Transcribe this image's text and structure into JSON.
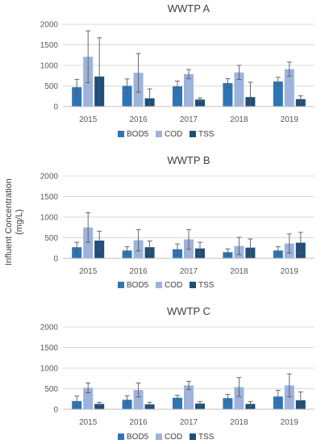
{
  "ylabel": "Influent Concentration (mg/L)",
  "ylabel_lines": [
    "Influent Concentration",
    "(mg/L)"
  ],
  "chart_data": [
    {
      "type": "bar",
      "title": "WWTP A",
      "categories": [
        "2015",
        "2016",
        "2017",
        "2018",
        "2019"
      ],
      "ylim": [
        0,
        2000
      ],
      "yticks": [
        0,
        500,
        1000,
        1500,
        2000
      ],
      "series": [
        {
          "name": "BOD5",
          "color": "#2e75b6",
          "values": [
            470,
            500,
            490,
            570,
            610
          ],
          "err": [
            190,
            170,
            130,
            110,
            100
          ]
        },
        {
          "name": "COD",
          "color": "#9db3dc",
          "values": [
            1210,
            820,
            790,
            830,
            910
          ],
          "err": [
            630,
            470,
            110,
            170,
            170
          ]
        },
        {
          "name": "TSS",
          "color": "#1f4e79",
          "values": [
            730,
            200,
            170,
            230,
            180
          ],
          "err": [
            940,
            230,
            40,
            360,
            80
          ]
        }
      ],
      "legend": "bottom"
    },
    {
      "type": "bar",
      "title": "WWTP B",
      "categories": [
        "2015",
        "2016",
        "2017",
        "2018",
        "2019"
      ],
      "ylim": [
        0,
        2000
      ],
      "yticks": [
        0,
        500,
        1000,
        1500,
        2000
      ],
      "series": [
        {
          "name": "BOD5",
          "color": "#2e75b6",
          "values": [
            270,
            190,
            220,
            150,
            190
          ],
          "err": [
            120,
            90,
            130,
            80,
            90
          ]
        },
        {
          "name": "COD",
          "color": "#9db3dc",
          "values": [
            750,
            440,
            460,
            300,
            360
          ],
          "err": [
            360,
            260,
            240,
            210,
            230
          ]
        },
        {
          "name": "TSS",
          "color": "#1f4e79",
          "values": [
            430,
            270,
            240,
            260,
            380
          ],
          "err": [
            230,
            150,
            150,
            210,
            250
          ]
        }
      ],
      "legend": "bottom"
    },
    {
      "type": "bar",
      "title": "WWTP C",
      "categories": [
        "2015",
        "2016",
        "2017",
        "2018",
        "2019"
      ],
      "ylim": [
        0,
        2000
      ],
      "yticks": [
        0,
        500,
        1000,
        1500,
        2000
      ],
      "series": [
        {
          "name": "BOD5",
          "color": "#2e75b6",
          "values": [
            200,
            230,
            280,
            270,
            310
          ],
          "err": [
            120,
            100,
            60,
            90,
            150
          ]
        },
        {
          "name": "COD",
          "color": "#9db3dc",
          "values": [
            520,
            470,
            580,
            540,
            580
          ],
          "err": [
            120,
            170,
            100,
            230,
            280
          ]
        },
        {
          "name": "TSS",
          "color": "#1f4e79",
          "values": [
            130,
            120,
            140,
            130,
            220
          ],
          "err": [
            40,
            50,
            50,
            60,
            200
          ]
        }
      ],
      "legend": "bottom"
    }
  ]
}
